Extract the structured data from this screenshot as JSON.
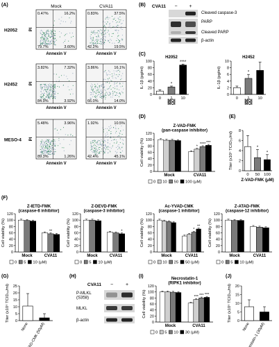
{
  "panels": [
    "(A)",
    "(B)",
    "(C)",
    "(D)",
    "(E)",
    "(F)",
    "(G)",
    "(H)",
    "(I)",
    "(J)"
  ],
  "flow": {
    "col_titles": [
      "Mock",
      "CVA11"
    ],
    "x_label": "Annexin V",
    "y_label": "PI",
    "rows": [
      {
        "cell": "H2052",
        "mock": [
          "0.47%",
          "16.2%",
          "79.7%",
          "3.60%"
        ],
        "cva": [
          "0.83%",
          "37.5%",
          "42.2%",
          "19.5%"
        ]
      },
      {
        "cell": "H2452",
        "mock": [
          "3.82%",
          "7.32%",
          "84.9%",
          "3.92%"
        ],
        "cva": [
          "3.86%",
          "16.1%",
          "66.0%",
          "14.0%"
        ]
      },
      {
        "cell": "MESO-4",
        "mock": [
          "5.48%",
          "3.96%",
          "89.3%",
          "1.26%"
        ],
        "cva": [
          "1.92%",
          "10.5%",
          "42.4%",
          "45.1%"
        ]
      }
    ]
  },
  "blotB": {
    "header": "CVA11",
    "minus": "−",
    "plus": "+",
    "labels": [
      "Cleaved caspase-3",
      "PARP",
      "Cleaved PARP",
      "β-actin"
    ]
  },
  "blotH": {
    "header": "CVA11",
    "minus": "−",
    "plus": "+",
    "labels": [
      "P-MLKL\n(S358)",
      "MLKL",
      "β-actin"
    ]
  },
  "chart_data": [
    {
      "id": "C1",
      "type": "bar",
      "title": "H2052",
      "ylabel": "IL-1β (pg/ml)",
      "xlabel": "MOI",
      "categories": [
        "0",
        "1",
        "10"
      ],
      "values": [
        10,
        22,
        88
      ],
      "errors": [
        4,
        3,
        3
      ],
      "ylim": [
        0,
        100
      ],
      "yticks": [
        0,
        20,
        40,
        60,
        80,
        100
      ],
      "stars": [
        "",
        "*",
        "****"
      ]
    },
    {
      "id": "C2",
      "type": "bar",
      "title": "H2452",
      "ylabel": "IL-1β (pg/ml)",
      "xlabel": "MOI",
      "categories": [
        "0",
        "1",
        "10"
      ],
      "values": [
        2,
        4.8,
        7.2
      ],
      "errors": [
        0.5,
        1.2,
        2.5
      ],
      "ylim": [
        0,
        10
      ],
      "yticks": [
        0,
        2,
        4,
        6,
        8,
        10
      ],
      "stars": [
        "",
        "*",
        ""
      ]
    },
    {
      "id": "D",
      "type": "bar",
      "title": "Z-VAD-FMK\n(pan-caspase inhibitor)",
      "ylabel": "Cell viability (%)",
      "groups": [
        "Mock",
        "CVA11"
      ],
      "series": [
        {
          "name": "0",
          "values": [
            100,
            62
          ]
        },
        {
          "name": "10",
          "values": [
            98,
            70
          ]
        },
        {
          "name": "50",
          "values": [
            98,
            78
          ]
        },
        {
          "name": "100",
          "values": [
            97,
            82
          ]
        }
      ],
      "ylim": [
        0,
        120
      ],
      "yticks": [
        0,
        20,
        40,
        60,
        80,
        100,
        120
      ],
      "stars": [
        [
          "",
          "",
          "",
          ""
        ],
        [
          "",
          "*",
          "****",
          "***"
        ]
      ],
      "legend": [
        "0",
        "10",
        "50",
        "100 (μM)"
      ]
    },
    {
      "id": "E",
      "type": "bar",
      "title": "",
      "ylabel": "Titer (x10⁶ TCID₅₀/ml)",
      "xlabel": "Z-VAD-FMK (μM)",
      "categories": [
        "0",
        "50",
        "100"
      ],
      "values": [
        4.8,
        2.6,
        2.2
      ],
      "errors": [
        2.2,
        1.6,
        1.0
      ],
      "ylim": [
        0,
        8
      ],
      "yticks": [
        0,
        2,
        4,
        6,
        8
      ],
      "stars": [
        "",
        "*",
        "*"
      ]
    },
    {
      "id": "F1",
      "type": "bar",
      "title": "Z-IETD-FMK\n(caspase-8 inhibitor)",
      "ylabel": "Cell viability (%)",
      "groups": [
        "Mock",
        "CVA11"
      ],
      "series": [
        {
          "name": "0",
          "values": [
            100,
            60
          ]
        },
        {
          "name": "5",
          "values": [
            99,
            57
          ]
        },
        {
          "name": "10",
          "values": [
            97,
            55
          ]
        }
      ],
      "ylim": [
        0,
        120
      ],
      "yticks": [
        0,
        20,
        40,
        60,
        80,
        100,
        120
      ],
      "stars": [
        [
          "",
          "",
          ""
        ],
        [
          "",
          "**",
          ""
        ]
      ],
      "legend": [
        "0",
        "5",
        "10 (μM)"
      ]
    },
    {
      "id": "F2",
      "type": "bar",
      "title": "Z-DEVD-FMK\n(caspase-3 inhibitor)",
      "ylabel": "Cell viability (%)",
      "groups": [
        "Mock",
        "CVA11"
      ],
      "series": [
        {
          "name": "0",
          "values": [
            100,
            62
          ]
        },
        {
          "name": "5",
          "values": [
            100,
            60
          ]
        },
        {
          "name": "10",
          "values": [
            98,
            57
          ]
        }
      ],
      "ylim": [
        0,
        120
      ],
      "yticks": [
        0,
        20,
        40,
        60,
        80,
        100,
        120
      ],
      "stars": [
        [
          "",
          "",
          ""
        ],
        [
          "",
          "",
          "*"
        ]
      ],
      "legend": [
        "0",
        "5",
        "10 (μM)"
      ]
    },
    {
      "id": "F3",
      "type": "bar",
      "title": "Ac-YVAD-CMK\n(caspase-1 inhibitor)",
      "ylabel": "Cell viability (%)",
      "groups": [
        "Mock",
        "CVA11"
      ],
      "series": [
        {
          "name": "0",
          "values": [
            100,
            50
          ]
        },
        {
          "name": "10",
          "values": [
            97,
            55
          ]
        },
        {
          "name": "25",
          "values": [
            95,
            62
          ]
        },
        {
          "name": "50",
          "values": [
            92,
            72
          ]
        }
      ],
      "ylim": [
        0,
        120
      ],
      "yticks": [
        0,
        20,
        40,
        60,
        80,
        100,
        120
      ],
      "stars": [
        [
          "",
          "",
          "",
          ""
        ],
        [
          "",
          "",
          "*",
          "**"
        ]
      ],
      "legend": [
        "0",
        "10",
        "25",
        "50 (μM)"
      ]
    },
    {
      "id": "F4",
      "type": "bar",
      "title": "Z-ATAD-FMK\n(caspase-12 inhibitor)",
      "ylabel": "Cell viability (%)",
      "groups": [
        "Mock",
        "CVA11"
      ],
      "series": [
        {
          "name": "0",
          "values": [
            100,
            80
          ]
        },
        {
          "name": "5",
          "values": [
            99,
            78
          ]
        },
        {
          "name": "10",
          "values": [
            99,
            76
          ]
        }
      ],
      "ylim": [
        0,
        120
      ],
      "yticks": [
        0,
        20,
        40,
        60,
        80,
        100,
        120
      ],
      "stars": [
        [
          "",
          "",
          ""
        ],
        [
          "",
          "",
          ""
        ]
      ],
      "legend": [
        "0",
        "5",
        "10 (μM)"
      ]
    },
    {
      "id": "G",
      "type": "bar",
      "title": "",
      "ylabel": "Titer (x10⁶ TCID₅₀/ml)",
      "categories": [
        "None",
        "Ac-YVAD-CMK (50μM)"
      ],
      "values": [
        10.5,
        2
      ],
      "errors": [
        9,
        3
      ],
      "ylim": [
        0,
        25
      ],
      "yticks": [
        0,
        5,
        10,
        15,
        20,
        25
      ],
      "stars": [
        "",
        ""
      ]
    },
    {
      "id": "I",
      "type": "bar",
      "title": "Necrostatin-1\n(RIPK1 inhibitor)",
      "ylabel": "Cell viability (%)",
      "groups": [
        "Mock",
        "CVA11"
      ],
      "series": [
        {
          "name": "0",
          "values": [
            100,
            63
          ]
        },
        {
          "name": "5",
          "values": [
            100,
            75
          ]
        },
        {
          "name": "10",
          "values": [
            99,
            80
          ]
        },
        {
          "name": "30",
          "values": [
            98,
            82
          ]
        }
      ],
      "ylim": [
        0,
        120
      ],
      "yticks": [
        0,
        20,
        40,
        60,
        80,
        100,
        120
      ],
      "stars": [
        [
          "",
          "",
          "",
          ""
        ],
        [
          "",
          "***",
          "***",
          "***"
        ]
      ],
      "legend": [
        "0",
        "5",
        "10",
        "30 (μM)"
      ]
    },
    {
      "id": "J",
      "type": "bar",
      "title": "",
      "ylabel": "Titer (x10⁶ TCID₅₀/ml)",
      "categories": [
        "None",
        "Necrostatin-1 (30μM)"
      ],
      "values": [
        8,
        5
      ],
      "errors": [
        4,
        3
      ],
      "ylim": [
        0,
        20
      ],
      "yticks": [
        0,
        5,
        10,
        15,
        20
      ],
      "stars": [
        "",
        ""
      ]
    }
  ],
  "colors": {
    "s0": "#ffffff",
    "s1": "#cfcfcf",
    "s2": "#7a7a7a",
    "s3": "#000000",
    "flowBg": "#f4f4f4",
    "flowDots": "#8aa0b8",
    "flowDense": "#2e8b57"
  }
}
